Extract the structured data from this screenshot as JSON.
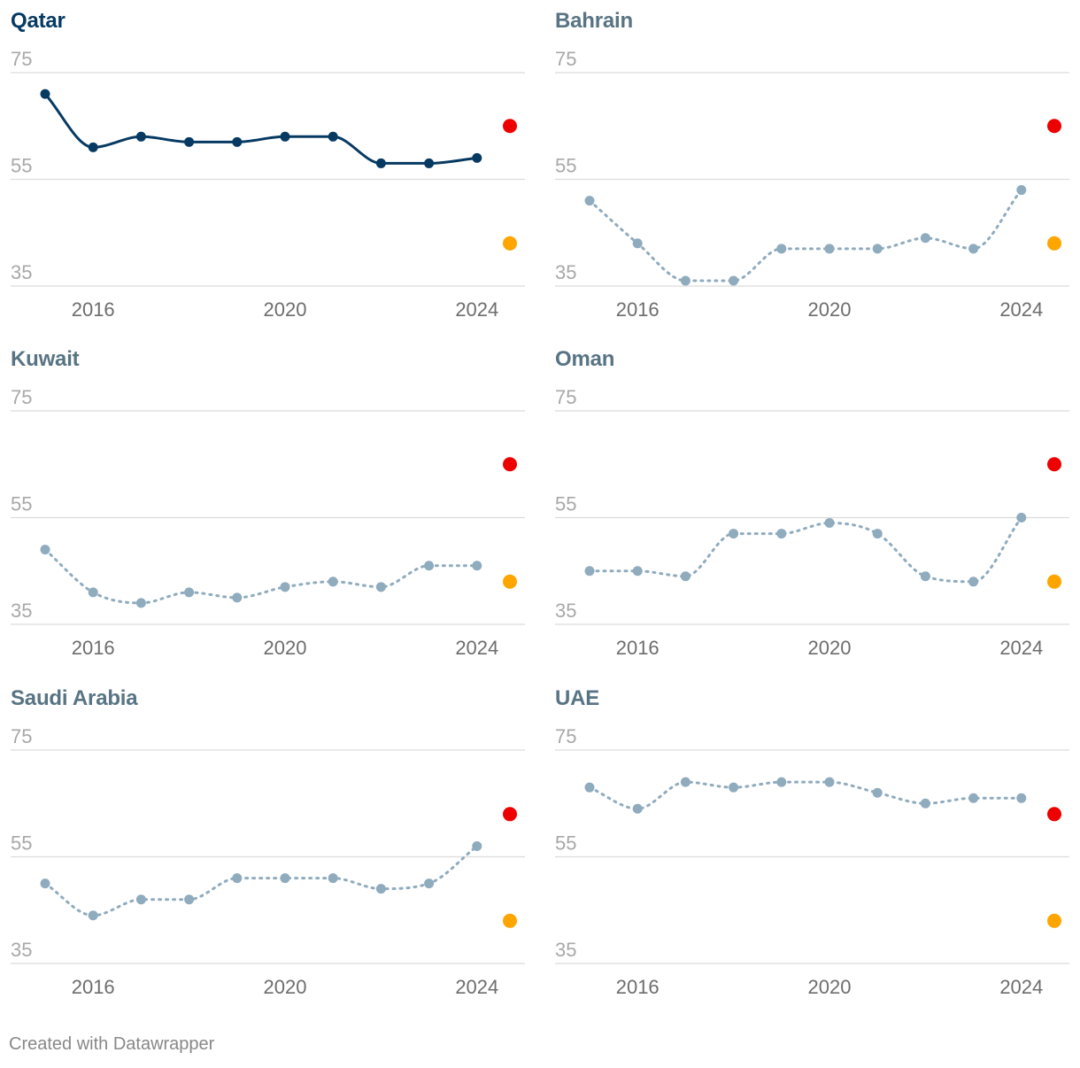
{
  "chart_data": [
    {
      "type": "line",
      "title": "Qatar",
      "highlighted": true,
      "x": [
        2015,
        2016,
        2017,
        2018,
        2019,
        2020,
        2021,
        2022,
        2023,
        2024
      ],
      "values": [
        71,
        61,
        63,
        62,
        62,
        63,
        63,
        58,
        58,
        59
      ],
      "ylim": [
        35,
        75
      ],
      "yticks": [
        "75",
        "55",
        "35"
      ],
      "xticks": [
        {
          "value": 2016,
          "label": "2016"
        },
        {
          "value": 2020,
          "label": "2020"
        },
        {
          "value": 2024,
          "label": "2024"
        }
      ],
      "markers": [
        {
          "name": "red",
          "value": 65
        },
        {
          "name": "orange",
          "value": 43
        }
      ]
    },
    {
      "type": "line",
      "title": "Bahrain",
      "highlighted": false,
      "x": [
        2015,
        2016,
        2017,
        2018,
        2019,
        2020,
        2021,
        2022,
        2023,
        2024
      ],
      "values": [
        51,
        43,
        36,
        36,
        42,
        42,
        42,
        44,
        42,
        53
      ],
      "ylim": [
        35,
        75
      ],
      "yticks": [
        "75",
        "55",
        "35"
      ],
      "xticks": [
        {
          "value": 2016,
          "label": "2016"
        },
        {
          "value": 2020,
          "label": "2020"
        },
        {
          "value": 2024,
          "label": "2024"
        }
      ],
      "markers": [
        {
          "name": "red",
          "value": 65
        },
        {
          "name": "orange",
          "value": 43
        }
      ]
    },
    {
      "type": "line",
      "title": "Kuwait",
      "highlighted": false,
      "x": [
        2015,
        2016,
        2017,
        2018,
        2019,
        2020,
        2021,
        2022,
        2023,
        2024
      ],
      "values": [
        49,
        41,
        39,
        41,
        40,
        42,
        43,
        42,
        46,
        46
      ],
      "ylim": [
        35,
        75
      ],
      "yticks": [
        "75",
        "55",
        "35"
      ],
      "xticks": [
        {
          "value": 2016,
          "label": "2016"
        },
        {
          "value": 2020,
          "label": "2020"
        },
        {
          "value": 2024,
          "label": "2024"
        }
      ],
      "markers": [
        {
          "name": "red",
          "value": 65
        },
        {
          "name": "orange",
          "value": 43
        }
      ]
    },
    {
      "type": "line",
      "title": "Oman",
      "highlighted": false,
      "x": [
        2015,
        2016,
        2017,
        2018,
        2019,
        2020,
        2021,
        2022,
        2023,
        2024
      ],
      "values": [
        45,
        45,
        44,
        52,
        52,
        54,
        52,
        44,
        43,
        55
      ],
      "ylim": [
        35,
        75
      ],
      "yticks": [
        "75",
        "55",
        "35"
      ],
      "xticks": [
        {
          "value": 2016,
          "label": "2016"
        },
        {
          "value": 2020,
          "label": "2020"
        },
        {
          "value": 2024,
          "label": "2024"
        }
      ],
      "markers": [
        {
          "name": "red",
          "value": 65
        },
        {
          "name": "orange",
          "value": 43
        }
      ]
    },
    {
      "type": "line",
      "title": "Saudi Arabia",
      "highlighted": false,
      "x": [
        2015,
        2016,
        2017,
        2018,
        2019,
        2020,
        2021,
        2022,
        2023,
        2024
      ],
      "values": [
        50,
        44,
        47,
        47,
        51,
        51,
        51,
        49,
        50,
        57
      ],
      "ylim": [
        35,
        75
      ],
      "yticks": [
        "75",
        "55",
        "35"
      ],
      "xticks": [
        {
          "value": 2016,
          "label": "2016"
        },
        {
          "value": 2020,
          "label": "2020"
        },
        {
          "value": 2024,
          "label": "2024"
        }
      ],
      "markers": [
        {
          "name": "red",
          "value": 63
        },
        {
          "name": "orange",
          "value": 43
        }
      ]
    },
    {
      "type": "line",
      "title": "UAE",
      "highlighted": false,
      "x": [
        2015,
        2016,
        2017,
        2018,
        2019,
        2020,
        2021,
        2022,
        2023,
        2024
      ],
      "values": [
        68,
        64,
        69,
        68,
        69,
        69,
        67,
        65,
        66,
        66
      ],
      "ylim": [
        35,
        75
      ],
      "yticks": [
        "75",
        "55",
        "35"
      ],
      "xticks": [
        {
          "value": 2016,
          "label": "2016"
        },
        {
          "value": 2020,
          "label": "2020"
        },
        {
          "value": 2024,
          "label": "2024"
        }
      ],
      "markers": [
        {
          "name": "red",
          "value": 63
        },
        {
          "name": "orange",
          "value": 43
        }
      ]
    }
  ],
  "colors": {
    "highlight_line": "#063a63",
    "highlight_title": "#063a63",
    "muted_line": "#8fabbe",
    "muted_title": "#587484",
    "grid": "#dcdcdc",
    "red_marker": "#ee0000",
    "orange_marker": "#ffa500"
  },
  "footer": {
    "credit": "Created with Datawrapper"
  }
}
